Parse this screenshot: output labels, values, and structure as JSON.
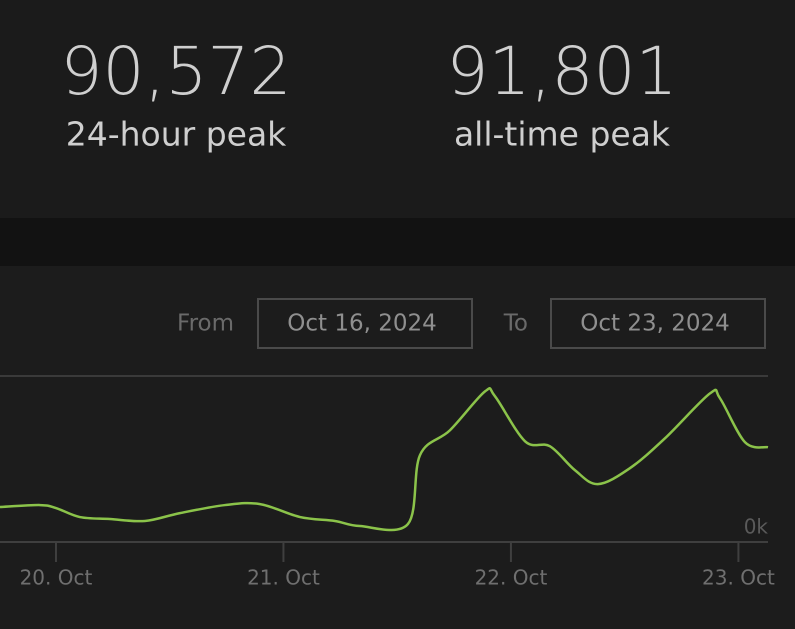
{
  "stats": [
    {
      "value": "90,572",
      "label": "24-hour peak"
    },
    {
      "value": "91,801",
      "label": "all-time peak"
    }
  ],
  "date_range": {
    "from_label": "From",
    "from": "Oct 16, 2024",
    "to_label": "To",
    "to": "Oct 23, 2024"
  },
  "chart_data": {
    "type": "line",
    "x": [
      19.754,
      19.93,
      20,
      20.105,
      20.237,
      20.391,
      20.545,
      20.743,
      20.897,
      21.073,
      21.226,
      21.336,
      21.547,
      21.6,
      21.732,
      21.886,
      21.93,
      22.062,
      22.171,
      22.281,
      22.382,
      22.523,
      22.677,
      22.875,
      22.919,
      23.029,
      23.13
    ],
    "series": [
      {
        "color": "#8bc34a",
        "values": [
          20.1,
          21.3,
          19.5,
          14,
          12.8,
          11.6,
          16.4,
          21.3,
          21.9,
          14,
          11.6,
          8.5,
          9.7,
          51.7,
          66.9,
          90.6,
          87.6,
          60.2,
          57.2,
          42.6,
          34.1,
          43.8,
          62,
          89.4,
          86.4,
          59.6,
          56.6
        ]
      }
    ],
    "xlim": [
      19.754,
      23.13
    ],
    "ylim": [
      0,
      100
    ],
    "xticks": [
      {
        "value": 20,
        "label": "20. Oct"
      },
      {
        "value": 21,
        "label": "21. Oct"
      },
      {
        "value": 22,
        "label": "22. Oct"
      },
      {
        "value": 23,
        "label": "23. Oct"
      }
    ],
    "yticks": [
      {
        "value": 0,
        "label": "0k"
      }
    ]
  }
}
